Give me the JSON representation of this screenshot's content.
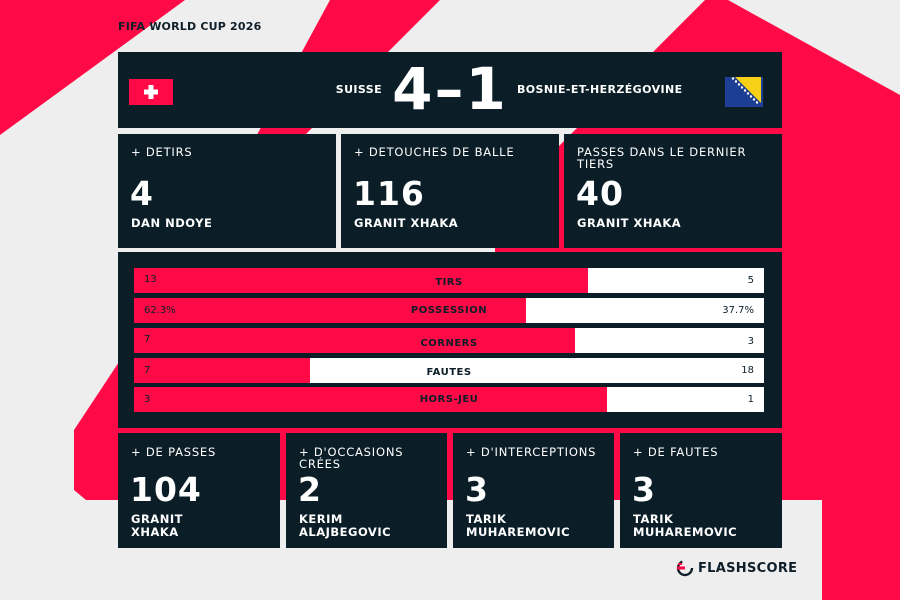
{
  "tournament": "FIFA WORLD CUP 2026",
  "match": {
    "home_team": "SUISSE",
    "away_team": "BOSNIE-ET-HERZÉGOVINE",
    "score": "4–1",
    "home_flag": "switzerland-flag-icon",
    "away_flag": "bosnia-herzegovina-flag-icon"
  },
  "top_leaders": [
    {
      "label": "+ DETIRS",
      "value": "4",
      "player": "DAN NDOYE"
    },
    {
      "label": "+ DETOUCHES DE BALLE",
      "value": "116",
      "player": "GRANIT XHAKA"
    },
    {
      "label": "PASSES DANS LE DERNIER TIERS",
      "value": "40",
      "player": "GRANIT XHAKA"
    }
  ],
  "stats": [
    {
      "name": "TIRS",
      "home": "13",
      "away": "5",
      "home_share": 0.72
    },
    {
      "name": "POSSESSION",
      "home": "62.3%",
      "away": "37.7%",
      "home_share": 0.623
    },
    {
      "name": "CORNERS",
      "home": "7",
      "away": "3",
      "home_share": 0.7
    },
    {
      "name": "FAUTES",
      "home": "7",
      "away": "18",
      "home_share": 0.28
    },
    {
      "name": "HORS-JEU",
      "home": "3",
      "away": "1",
      "home_share": 0.75
    }
  ],
  "bottom_leaders": [
    {
      "label": "+ DE PASSES",
      "value": "104",
      "player": "GRANIT XHAKA"
    },
    {
      "label": "+ D'OCCASIONS CRÉES",
      "value": "2",
      "player": "KERIM ALAJBEGOVIC"
    },
    {
      "label": "+ D'INTERCEPTIONS",
      "value": "3",
      "player": "TARIK MUHAREMOVIC"
    },
    {
      "label": "+ DE FAUTES",
      "value": "3",
      "player": "TARIK MUHAREMOVIC"
    }
  ],
  "brand": {
    "name": "FLASHSCORE",
    "logo": "flashscore-logo-icon"
  },
  "colors": {
    "accent": "#ff0a46",
    "panel": "#0b1e28",
    "background": "#eeeeee"
  }
}
